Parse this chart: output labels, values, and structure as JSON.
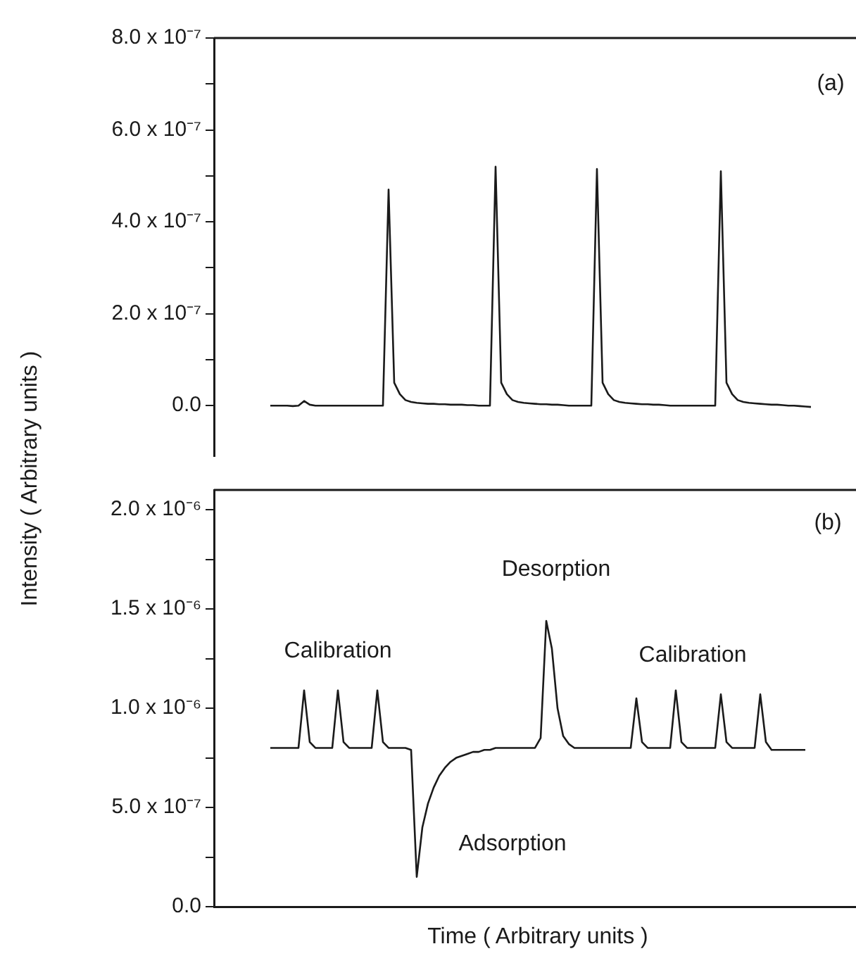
{
  "chart_data": [
    {
      "type": "line",
      "ylabel": "Intensity ( Arbitrary units )",
      "annotations": [
        "(a)"
      ],
      "tick_labels": "y",
      "grid": false,
      "color": "#1a1a1a",
      "ylim": [
        -1.1e-07,
        8e-07
      ],
      "yticks": [
        {
          "value": 0,
          "label": "0.0"
        },
        {
          "value": 1e-07,
          "label": null
        },
        {
          "value": 2e-07,
          "label": "2.0 x 10⁻⁷"
        },
        {
          "value": 3e-07,
          "label": null
        },
        {
          "value": 4e-07,
          "label": "4.0 x 10⁻⁷"
        },
        {
          "value": 5e-07,
          "label": null
        },
        {
          "value": 6e-07,
          "label": "6.0 x 10⁻⁷"
        },
        {
          "value": 7e-07,
          "label": null
        },
        {
          "value": 8e-07,
          "label": "8.0 x 10⁻⁷"
        }
      ],
      "categories": [
        null,
        null,
        null,
        null,
        null,
        null,
        null,
        null,
        null,
        null,
        null,
        null,
        null,
        null,
        null,
        null,
        null,
        null,
        null,
        null,
        null,
        null,
        null,
        null,
        null,
        null,
        null,
        null,
        null,
        null,
        null,
        null,
        null,
        null,
        null,
        null,
        null,
        null,
        null,
        null,
        null,
        null,
        null,
        null,
        null,
        null,
        null,
        null,
        null,
        null,
        null,
        null,
        null,
        null,
        null,
        null,
        null,
        null,
        null,
        null,
        null,
        null,
        null,
        null,
        null,
        null,
        null,
        null,
        null,
        null,
        null,
        null,
        null,
        null,
        null,
        null,
        null,
        null,
        null,
        null,
        null,
        null,
        null,
        null,
        null,
        null,
        null,
        null,
        null,
        null,
        null,
        null,
        null,
        null,
        null,
        null,
        null,
        null,
        null,
        null,
        null,
        null,
        null,
        null,
        null,
        null,
        null,
        null,
        null,
        null,
        null,
        null,
        null,
        null,
        null
      ],
      "values": [
        null,
        null,
        null,
        null,
        null,
        null,
        null,
        null,
        null,
        null,
        0,
        0,
        0,
        0,
        -1e-09,
        0,
        1e-08,
        2e-09,
        0,
        0,
        0,
        0,
        0,
        0,
        0,
        0,
        0,
        0,
        0,
        0,
        0,
        4.7e-07,
        5e-08,
        2.5e-08,
        1.2e-08,
        8e-09,
        6e-09,
        5e-09,
        4e-09,
        4e-09,
        3e-09,
        3e-09,
        2e-09,
        2e-09,
        2e-09,
        1e-09,
        1e-09,
        0,
        0,
        0,
        5.2e-07,
        5e-08,
        2.5e-08,
        1.2e-08,
        8e-09,
        6e-09,
        5e-09,
        4e-09,
        3e-09,
        3e-09,
        2e-09,
        2e-09,
        1e-09,
        0,
        0,
        0,
        0,
        0,
        5.15e-07,
        5e-08,
        2.5e-08,
        1.2e-08,
        8e-09,
        6e-09,
        5e-09,
        4e-09,
        3e-09,
        3e-09,
        2e-09,
        2e-09,
        1e-09,
        0,
        0,
        0,
        0,
        0,
        0,
        0,
        0,
        0,
        5.1e-07,
        5e-08,
        2.5e-08,
        1.2e-08,
        8e-09,
        6e-09,
        5e-09,
        4e-09,
        3e-09,
        2e-09,
        2e-09,
        1e-09,
        0,
        0,
        -1e-09,
        -2e-09,
        -3e-09,
        null,
        null,
        null,
        null,
        null,
        null,
        null,
        null
      ]
    },
    {
      "type": "line",
      "xlabel": "Time ( Arbitrary units )",
      "annotations": [
        "(b)",
        "Calibration",
        "Desorption",
        "Calibration",
        "Adsorption"
      ],
      "tick_labels": "y",
      "grid": false,
      "color": "#1a1a1a",
      "ylim": [
        0,
        2.1e-06
      ],
      "yticks": [
        {
          "value": 0,
          "label": "0.0"
        },
        {
          "value": 2.5e-07,
          "label": null
        },
        {
          "value": 5e-07,
          "label": "5.0 x 10⁻⁷"
        },
        {
          "value": 7.5e-07,
          "label": null
        },
        {
          "value": 1e-06,
          "label": "1.0 x 10⁻⁶"
        },
        {
          "value": 1.25e-06,
          "label": null
        },
        {
          "value": 1.5e-06,
          "label": "1.5 x 10⁻⁶"
        },
        {
          "value": 1.75e-06,
          "label": null
        },
        {
          "value": 2e-06,
          "label": "2.0 x 10⁻⁶"
        }
      ],
      "categories": [
        null,
        null,
        null,
        null,
        null,
        null,
        null,
        null,
        null,
        null,
        null,
        null,
        null,
        null,
        null,
        null,
        null,
        null,
        null,
        null,
        null,
        null,
        null,
        null,
        null,
        null,
        null,
        null,
        null,
        null,
        null,
        null,
        null,
        null,
        null,
        null,
        null,
        null,
        null,
        null,
        null,
        null,
        null,
        null,
        null,
        null,
        null,
        null,
        null,
        null,
        null,
        null,
        null,
        null,
        null,
        null,
        null,
        null,
        null,
        null,
        null,
        null,
        null,
        null,
        null,
        null,
        null,
        null,
        null,
        null,
        null,
        null,
        null,
        null,
        null,
        null,
        null,
        null,
        null,
        null,
        null,
        null,
        null,
        null,
        null,
        null,
        null,
        null,
        null,
        null,
        null,
        null,
        null,
        null,
        null,
        null,
        null,
        null,
        null,
        null,
        null,
        null,
        null,
        null,
        null,
        null,
        null,
        null,
        null,
        null,
        null,
        null,
        null,
        null,
        null
      ],
      "values": [
        null,
        null,
        null,
        null,
        null,
        null,
        null,
        null,
        null,
        null,
        8e-07,
        8e-07,
        8e-07,
        8e-07,
        8e-07,
        8e-07,
        1.09e-06,
        8.3e-07,
        8e-07,
        8e-07,
        8e-07,
        8e-07,
        1.09e-06,
        8.3e-07,
        8e-07,
        8e-07,
        8e-07,
        8e-07,
        8e-07,
        1.09e-06,
        8.3e-07,
        8e-07,
        8e-07,
        8e-07,
        8e-07,
        7.9e-07,
        1.5e-07,
        4e-07,
        5.2e-07,
        6e-07,
        6.6e-07,
        7e-07,
        7.3e-07,
        7.5e-07,
        7.6e-07,
        7.7e-07,
        7.8e-07,
        7.8e-07,
        7.9e-07,
        7.9e-07,
        8e-07,
        8e-07,
        8e-07,
        8e-07,
        8e-07,
        8e-07,
        8e-07,
        8e-07,
        8.5e-07,
        1.44e-06,
        1.3e-06,
        1e-06,
        8.6e-07,
        8.2e-07,
        8e-07,
        8e-07,
        8e-07,
        8e-07,
        8e-07,
        8e-07,
        8e-07,
        8e-07,
        8e-07,
        8e-07,
        8e-07,
        1.05e-06,
        8.3e-07,
        8e-07,
        8e-07,
        8e-07,
        8e-07,
        8e-07,
        1.09e-06,
        8.3e-07,
        8e-07,
        8e-07,
        8e-07,
        8e-07,
        8e-07,
        8e-07,
        1.07e-06,
        8.3e-07,
        8e-07,
        8e-07,
        8e-07,
        8e-07,
        8e-07,
        1.07e-06,
        8.3e-07,
        7.9e-07,
        7.9e-07,
        7.9e-07,
        7.9e-07,
        7.9e-07,
        7.9e-07,
        7.9e-07,
        null,
        null,
        null,
        null,
        null,
        null,
        null,
        null,
        null
      ]
    }
  ]
}
